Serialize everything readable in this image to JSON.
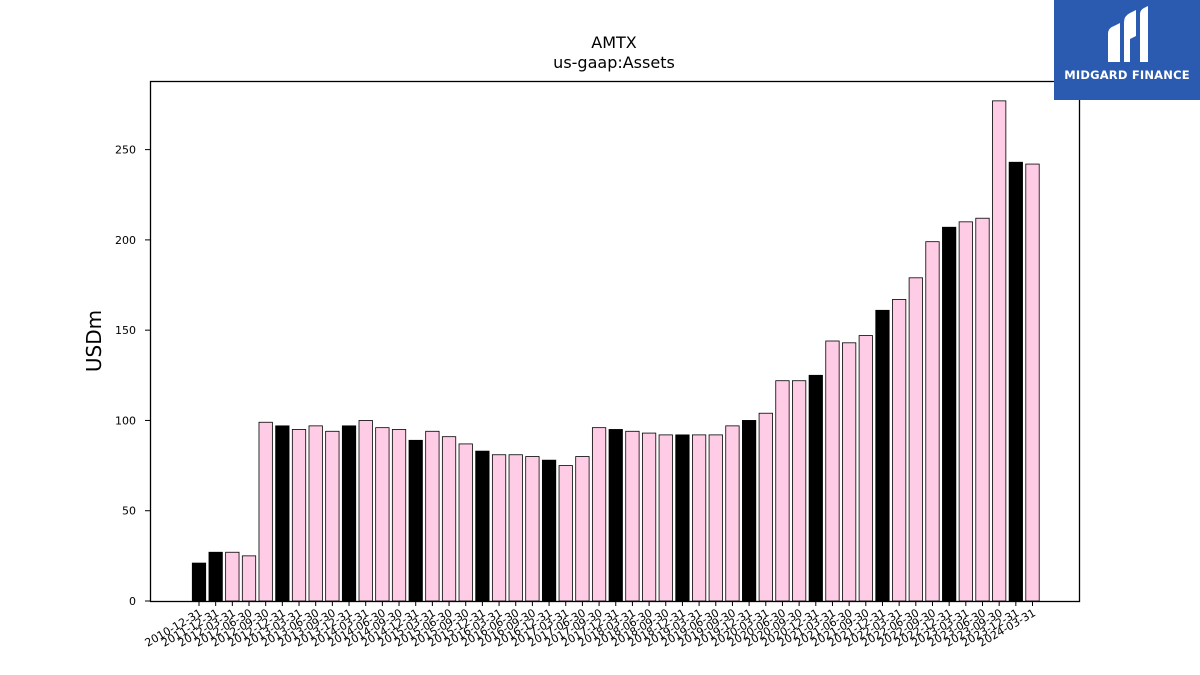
{
  "logo": {
    "text": "MIDGARD FINANCE",
    "bg_color": "#2b5bb0",
    "icon": "midgard-logo-icon"
  },
  "chart_data": {
    "type": "bar",
    "title": "AMTX",
    "subtitle": "us-gaap:Assets",
    "xlabel": "",
    "ylabel": "USDm",
    "ylim": [
      0,
      288
    ],
    "yticks": [
      0,
      50,
      100,
      150,
      200,
      250
    ],
    "grid": false,
    "colors": {
      "annual": "#000000",
      "quarterly": "#ffcce6",
      "edge": "#000000"
    },
    "categories": [
      "2010-12-31",
      "2011-12-31",
      "2012-03-31",
      "2012-06-30",
      "2012-09-30",
      "2012-12-31",
      "2013-03-31",
      "2013-06-30",
      "2013-09-30",
      "2013-12-31",
      "2014-03-31",
      "2014-06-30",
      "2014-09-30",
      "2014-12-31",
      "2015-03-31",
      "2015-06-30",
      "2015-09-30",
      "2015-12-31",
      "2016-03-31",
      "2016-06-30",
      "2016-09-30",
      "2016-12-31",
      "2017-03-31",
      "2017-06-30",
      "2017-09-30",
      "2017-12-31",
      "2018-03-31",
      "2018-06-30",
      "2018-09-30",
      "2018-12-31",
      "2019-03-31",
      "2019-06-30",
      "2019-09-30",
      "2019-12-31",
      "2020-03-31",
      "2020-06-30",
      "2020-09-30",
      "2020-12-31",
      "2021-03-31",
      "2021-06-30",
      "2021-09-30",
      "2021-12-31",
      "2022-03-31",
      "2022-06-30",
      "2022-09-30",
      "2022-12-31",
      "2023-03-31",
      "2023-06-30",
      "2023-09-30",
      "2023-12-31",
      "2024-03-31"
    ],
    "values": [
      21,
      27,
      27,
      25,
      99,
      97,
      95,
      97,
      94,
      97,
      100,
      96,
      95,
      89,
      94,
      91,
      87,
      83,
      81,
      81,
      80,
      78,
      75,
      80,
      96,
      95,
      94,
      93,
      92,
      92,
      92,
      92,
      97,
      100,
      104,
      122,
      122,
      125,
      144,
      143,
      147,
      161,
      167,
      179,
      199,
      207,
      210,
      212,
      277,
      243,
      242
    ],
    "annual_flags": [
      true,
      true,
      false,
      false,
      false,
      true,
      false,
      false,
      false,
      true,
      false,
      false,
      false,
      true,
      false,
      false,
      false,
      true,
      false,
      false,
      false,
      true,
      false,
      false,
      false,
      true,
      false,
      false,
      false,
      true,
      false,
      false,
      false,
      true,
      false,
      false,
      false,
      true,
      false,
      false,
      false,
      true,
      false,
      false,
      false,
      true,
      false,
      false,
      false,
      true,
      false
    ]
  }
}
